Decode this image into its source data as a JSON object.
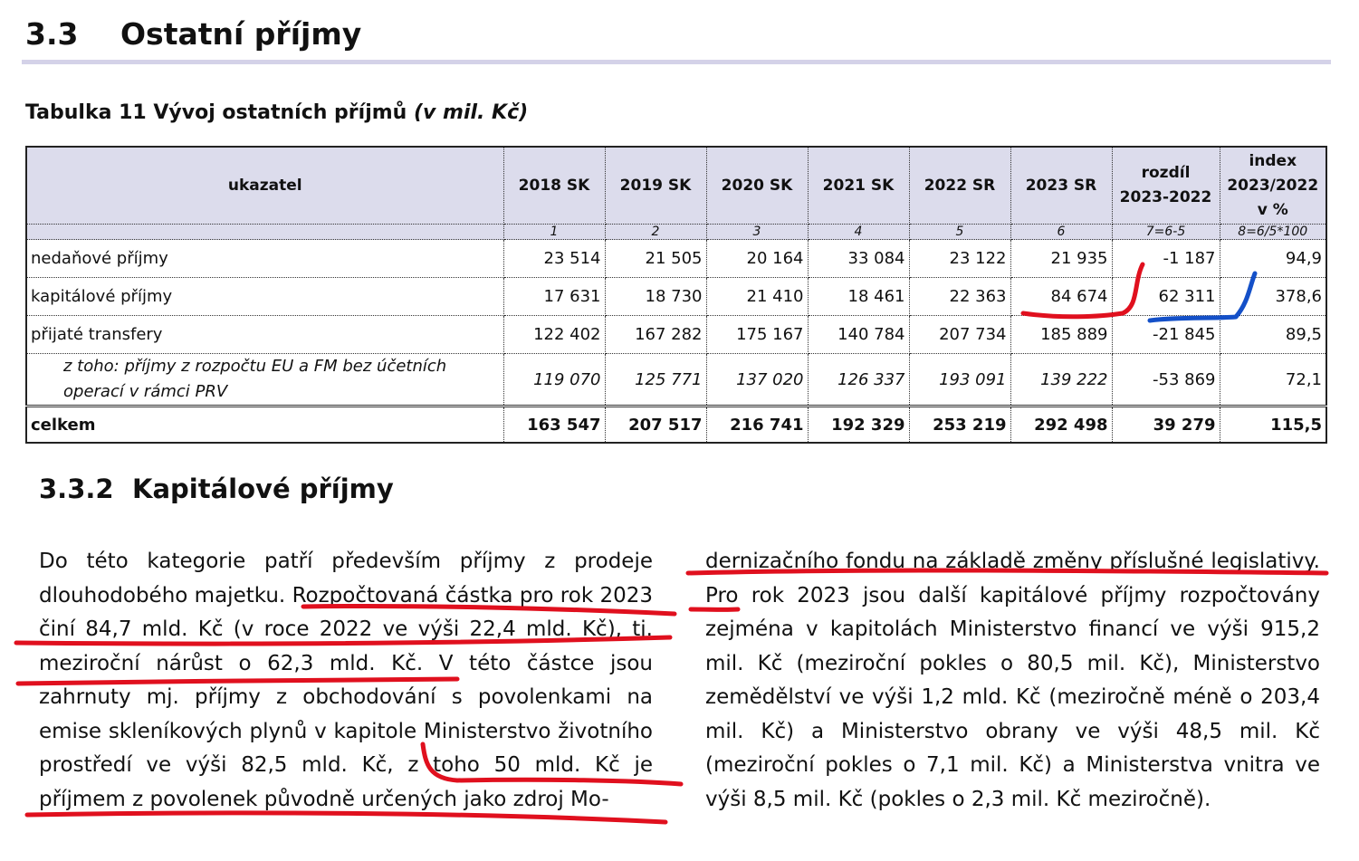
{
  "section": {
    "number": "3.3",
    "title": "Ostatní příjmy"
  },
  "table_caption": {
    "main": "Tabulka 11 Vývoj ostatních příjmů ",
    "unit": "(v mil. Kč)"
  },
  "table": {
    "headers": [
      "ukazatel",
      "2018 SK",
      "2019 SK",
      "2020 SK",
      "2021 SK",
      "2022 SR",
      "2023 SR",
      "rozdíl 2023-2022",
      "index 2023/2022 v %"
    ],
    "col_numbers": [
      "",
      "1",
      "2",
      "3",
      "4",
      "5",
      "6",
      "7=6-5",
      "8=6/5*100"
    ],
    "rows": [
      {
        "label": "nedaňové příjmy",
        "values": [
          "23 514",
          "21 505",
          "20 164",
          "33 084",
          "23 122",
          "21 935",
          "-1 187",
          "94,9"
        ]
      },
      {
        "label": "kapitálové příjmy",
        "values": [
          "17 631",
          "18 730",
          "21 410",
          "18 461",
          "22 363",
          "84 674",
          "62 311",
          "378,6"
        ]
      },
      {
        "label": "přijaté transfery",
        "values": [
          "122 402",
          "167 282",
          "175 167",
          "140 784",
          "207 734",
          "185 889",
          "-21 845",
          "89,5"
        ]
      },
      {
        "label": "z toho: příjmy z rozpočtu EU a FM bez účetních operací v rámci PRV",
        "values": [
          "119 070",
          "125 771",
          "137 020",
          "126 337",
          "193 091",
          "139 222",
          "-53 869",
          "72,1"
        ]
      },
      {
        "label": "celkem",
        "values": [
          "163 547",
          "207 517",
          "216 741",
          "192 329",
          "253 219",
          "292 498",
          "39 279",
          "115,5"
        ]
      }
    ]
  },
  "subsection": {
    "number": "3.3.2",
    "title": "Kapitálové příjmy"
  },
  "paragraph": {
    "left": "Do této kategorie patří především příjmy z prodeje dlouhodobého majetku. Rozpočtovaná částka pro rok 2023 činí 84,7 mld. Kč (v roce 2022 ve výši 22,4 mld. Kč), tj. meziroční nárůst o 62,3 mld. Kč. V této částce jsou zahrnuty mj. příjmy z obchodování s povolenkami na emise skleníkových plynů v kapitole Ministerstvo životního prostředí ve výši 82,5 mld. Kč, z toho 50 mld. Kč je příjmem z povolenek původně určených jako zdroj Mo-",
    "right": "dernizačního fondu na základě změny příslušné legislativy. Pro rok 2023 jsou další kapitálové příjmy rozpočtovány zejména v kapitolách Ministerstvo financí ve výši 915,2 mil. Kč (meziroční pokles o 80,5 mil. Kč), Ministerstvo zemědělství ve výši 1,2 mld. Kč (meziročně méně o 203,4 mil. Kč) a Ministerstvo obrany ve výši 48,5 mil. Kč (meziroční pokles o 7,1 mil. Kč) a Ministerstva vnitra ve výši 8,5 mil. Kč (pokles o 2,3 mil. Kč meziročně)."
  },
  "annotation_colors": {
    "red": "#e0101e",
    "blue": "#1450c8"
  }
}
